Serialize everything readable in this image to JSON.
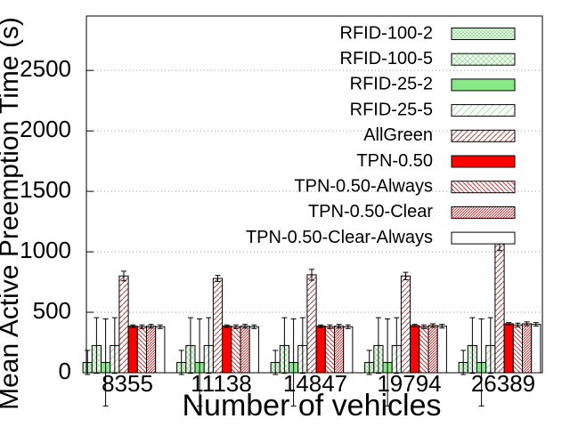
{
  "chart_data": {
    "type": "bar",
    "x_label": "Number of vehicles",
    "y_label": "Mean Active Preemption Time (s)",
    "categories": [
      "8355",
      "11138",
      "14847",
      "19794",
      "26389"
    ],
    "ylim": [
      0,
      2950
    ],
    "yticks": [
      0,
      500,
      1000,
      1500,
      2000,
      2500
    ],
    "grid": true,
    "legend": "top-right",
    "series": [
      {
        "name": "RFID-100-2",
        "color": "#9fdf9f",
        "pattern": "crosshatch-dense",
        "values": [
          85,
          85,
          85,
          85,
          85
        ],
        "errors": [
          100,
          100,
          100,
          100,
          100
        ]
      },
      {
        "name": "RFID-100-5",
        "color": "#9fdf9f",
        "pattern": "crosshatch",
        "values": [
          225,
          225,
          225,
          225,
          225
        ],
        "errors": [
          230,
          230,
          230,
          230,
          230
        ]
      },
      {
        "name": "RFID-25-2",
        "color": "#88e788",
        "pattern": "solid",
        "values": [
          85,
          85,
          85,
          85,
          85
        ],
        "errors": [
          360,
          360,
          360,
          360,
          360
        ]
      },
      {
        "name": "RFID-25-5",
        "color": "#9fdf9f",
        "pattern": "diag-sparse",
        "values": [
          225,
          225,
          225,
          225,
          225
        ],
        "errors": [
          230,
          230,
          230,
          230,
          230
        ]
      },
      {
        "name": "AllGreen",
        "color": "#cc3333",
        "pattern": "diag",
        "values": [
          800,
          780,
          810,
          800,
          1080
        ],
        "errors": [
          40,
          25,
          45,
          30,
          70
        ]
      },
      {
        "name": "TPN-0.50",
        "color": "#ff0000",
        "pattern": "solid",
        "values": [
          385,
          385,
          385,
          390,
          405
        ],
        "errors": [
          10,
          10,
          10,
          10,
          10
        ]
      },
      {
        "name": "TPN-0.50-Always",
        "color": "#cc3333",
        "pattern": "backdiag",
        "values": [
          380,
          380,
          380,
          380,
          395
        ],
        "errors": [
          15,
          15,
          15,
          15,
          15
        ]
      },
      {
        "name": "TPN-0.50-Clear",
        "color": "#cc3333",
        "pattern": "diag-dense",
        "values": [
          385,
          385,
          385,
          390,
          405
        ],
        "errors": [
          15,
          15,
          15,
          15,
          15
        ]
      },
      {
        "name": "TPN-0.50-Clear-Always",
        "color": "#000000",
        "pattern": "empty",
        "values": [
          380,
          380,
          380,
          385,
          400
        ],
        "errors": [
          15,
          15,
          15,
          15,
          15
        ]
      }
    ]
  }
}
